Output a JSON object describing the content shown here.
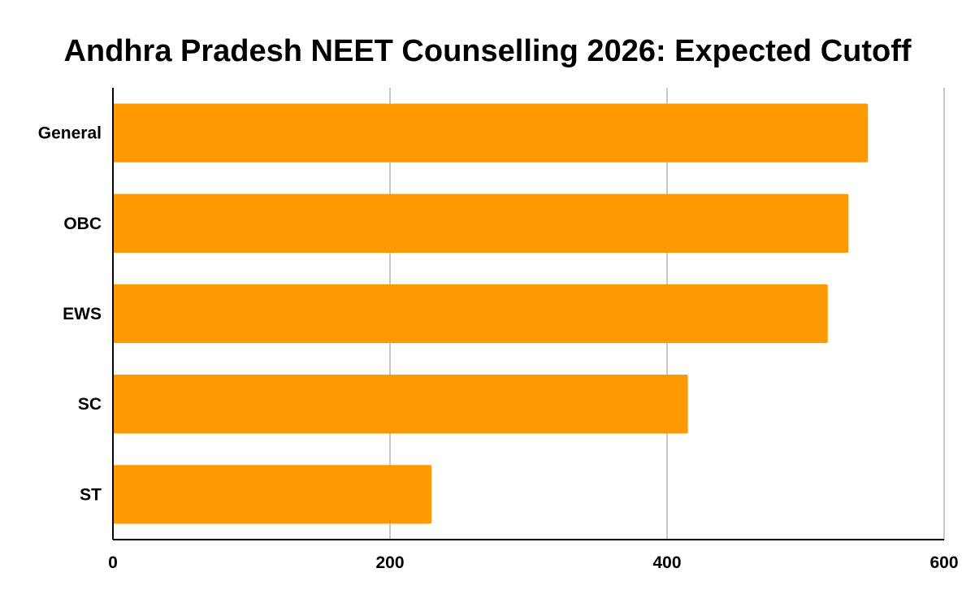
{
  "chart_data": {
    "type": "bar",
    "orientation": "horizontal",
    "title": "Andhra Pradesh NEET Counselling 2026: Expected Cutoff",
    "categories": [
      "General",
      "OBC",
      "EWS",
      "SC",
      "ST"
    ],
    "values": [
      545,
      531,
      516,
      415,
      230
    ],
    "xlim": [
      0,
      600
    ],
    "x_ticks": [
      "0",
      "200",
      "400",
      "600"
    ],
    "grid": true,
    "legend": "none",
    "bar_color": "#ff9900"
  }
}
